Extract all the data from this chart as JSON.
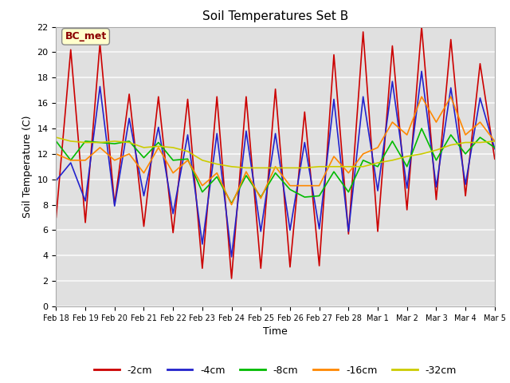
{
  "title": "Soil Temperatures Set B",
  "xlabel": "Time",
  "ylabel": "Soil Temperature (C)",
  "annotation": "BC_met",
  "ylim": [
    0,
    22
  ],
  "xlim": [
    0,
    15
  ],
  "xtick_labels": [
    "Feb 18",
    "Feb 19",
    "Feb 20",
    "Feb 21",
    "Feb 22",
    "Feb 23",
    "Feb 24",
    "Feb 25",
    "Feb 26",
    "Feb 27",
    "Feb 28",
    "Mar 1",
    "Mar 2",
    "Mar 3",
    "Mar 4",
    "Mar 5"
  ],
  "legend_labels": [
    "-2cm",
    "-4cm",
    "-8cm",
    "-16cm",
    "-32cm"
  ],
  "line_colors": [
    "#cc0000",
    "#2222cc",
    "#00bb00",
    "#ff8800",
    "#cccc00"
  ],
  "line_widths": [
    1.2,
    1.2,
    1.2,
    1.2,
    1.2
  ],
  "fig_bg_color": "#ffffff",
  "plot_bg_color": "#e0e0e0",
  "grid_color": "#f5f5f5",
  "series": {
    "neg2cm": [
      7.0,
      20.2,
      6.6,
      20.7,
      8.0,
      16.7,
      6.3,
      16.5,
      5.8,
      16.3,
      3.0,
      16.5,
      2.2,
      16.5,
      3.0,
      17.1,
      3.1,
      15.3,
      3.2,
      19.8,
      5.7,
      21.6,
      5.9,
      20.5,
      7.6,
      22.0,
      8.4,
      21.0,
      8.7,
      19.1,
      11.6
    ],
    "neg4cm": [
      9.9,
      11.3,
      8.3,
      17.3,
      7.9,
      14.8,
      8.7,
      14.1,
      7.3,
      13.5,
      4.9,
      13.6,
      3.9,
      13.8,
      5.9,
      13.6,
      6.0,
      12.9,
      6.1,
      16.3,
      5.9,
      16.5,
      9.1,
      17.7,
      9.3,
      18.5,
      9.4,
      17.2,
      9.6,
      16.4,
      12.4
    ],
    "neg8cm": [
      13.0,
      11.5,
      13.0,
      12.9,
      12.8,
      13.0,
      11.7,
      12.9,
      11.5,
      11.6,
      9.0,
      10.2,
      8.1,
      10.3,
      8.6,
      10.5,
      9.2,
      8.6,
      8.7,
      10.6,
      9.0,
      11.5,
      11.0,
      13.0,
      11.0,
      14.0,
      11.5,
      13.5,
      12.0,
      13.3,
      12.5
    ],
    "neg16cm": [
      12.0,
      11.5,
      11.5,
      12.5,
      11.5,
      12.0,
      10.5,
      12.5,
      10.5,
      11.5,
      9.5,
      10.5,
      8.0,
      10.6,
      8.5,
      11.0,
      9.5,
      9.5,
      9.5,
      11.8,
      10.5,
      12.0,
      12.5,
      14.5,
      13.5,
      16.5,
      14.5,
      16.5,
      13.5,
      14.5,
      13.0
    ],
    "neg32cm": [
      13.3,
      13.0,
      12.9,
      12.9,
      13.0,
      12.9,
      12.5,
      12.6,
      12.5,
      12.2,
      11.5,
      11.2,
      11.0,
      10.9,
      10.9,
      10.9,
      10.9,
      10.9,
      11.0,
      11.0,
      11.0,
      11.0,
      11.3,
      11.5,
      11.8,
      12.0,
      12.3,
      12.7,
      12.9,
      12.9,
      13.0
    ]
  }
}
